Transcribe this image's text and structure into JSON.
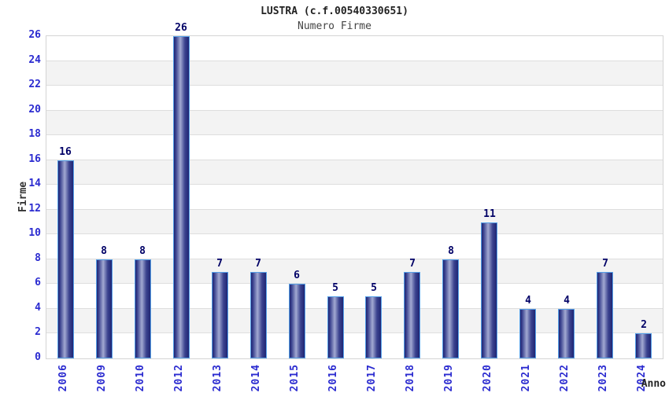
{
  "header": {
    "title": "LUSTRA (c.f.00540330651)",
    "subtitle": "Numero Firme"
  },
  "chart_data": {
    "type": "bar",
    "title": "LUSTRA (c.f.00540330651)",
    "subtitle": "Numero Firme",
    "categories": [
      "2006",
      "2009",
      "2010",
      "2012",
      "2013",
      "2014",
      "2015",
      "2016",
      "2017",
      "2018",
      "2019",
      "2020",
      "2021",
      "2022",
      "2023",
      "2024"
    ],
    "values": [
      16,
      8,
      8,
      26,
      7,
      7,
      6,
      5,
      5,
      7,
      8,
      11,
      4,
      4,
      7,
      2
    ],
    "xlabel": "Anno",
    "ylabel": "Firme",
    "ylim": [
      0,
      26
    ],
    "ytick_step": 2,
    "grid": "alternating-horizontal-bands",
    "legend": "none",
    "colors": {
      "bar_dark": "#1f2573",
      "bar_mid": "#3c438f",
      "bar_light": "#a2a9d2",
      "bar_border": "#55a0e8",
      "tick_label": "#2b2bd0",
      "value_label": "#000066",
      "band_gray": "#f3f3f3",
      "band_white": "#ffffff",
      "grid_line": "#dedede",
      "plot_border": "#d4d4d4",
      "title_color": "#222222",
      "subtitle_color": "#444444",
      "axis_label_color": "#333333"
    }
  }
}
